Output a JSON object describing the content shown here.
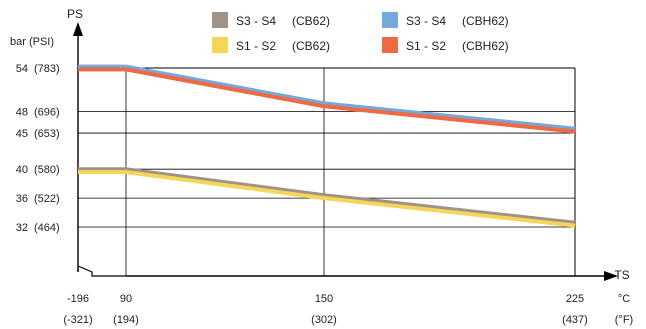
{
  "chart_data": {
    "type": "line",
    "y_axis": {
      "title": "PS",
      "unit_label": "bar (PSI)",
      "ylim": [
        26,
        58
      ],
      "ticks": [
        {
          "value": 54,
          "label": "54",
          "alt": "(783)"
        },
        {
          "value": 48,
          "label": "48",
          "alt": "(696)"
        },
        {
          "value": 45,
          "label": "45",
          "alt": "(653)"
        },
        {
          "value": 40,
          "label": "40",
          "alt": "(580)"
        },
        {
          "value": 36,
          "label": "36",
          "alt": "(522)"
        },
        {
          "value": 32,
          "label": "32",
          "alt": "(464)"
        }
      ]
    },
    "x_axis": {
      "title": "TS",
      "unit_c": "°C",
      "unit_f": "(°F)",
      "ticks": [
        {
          "value": -196,
          "label": "-196",
          "alt": "(-321)"
        },
        {
          "value": 90,
          "label": "90",
          "alt": "(194)"
        },
        {
          "value": 150,
          "label": "150",
          "alt": "(302)"
        },
        {
          "value": 225,
          "label": "225",
          "alt": "(437)"
        }
      ]
    },
    "series": [
      {
        "name": "S3 - S4",
        "code": "(CBH62)",
        "color": "#74a9dc",
        "x": [
          -196,
          90,
          150,
          225
        ],
        "y": [
          54.2,
          54.2,
          49.1,
          45.6
        ]
      },
      {
        "name": "S1 - S2",
        "code": "(CBH62)",
        "color": "#ef6a43",
        "x": [
          -196,
          90,
          150,
          225
        ],
        "y": [
          53.8,
          53.8,
          48.7,
          45.2
        ]
      },
      {
        "name": "S3 - S4",
        "code": "(CB62)",
        "color": "#9e928b",
        "x": [
          -196,
          90,
          150,
          225
        ],
        "y": [
          40.0,
          40.0,
          36.4,
          32.6
        ]
      },
      {
        "name": "S1 - S2",
        "code": "(CB62)",
        "color": "#f6d657",
        "x": [
          -196,
          90,
          150,
          225
        ],
        "y": [
          39.6,
          39.6,
          36.0,
          32.2
        ]
      }
    ],
    "legend": {
      "placement": "top",
      "order": [
        2,
        0,
        3,
        1
      ]
    }
  }
}
